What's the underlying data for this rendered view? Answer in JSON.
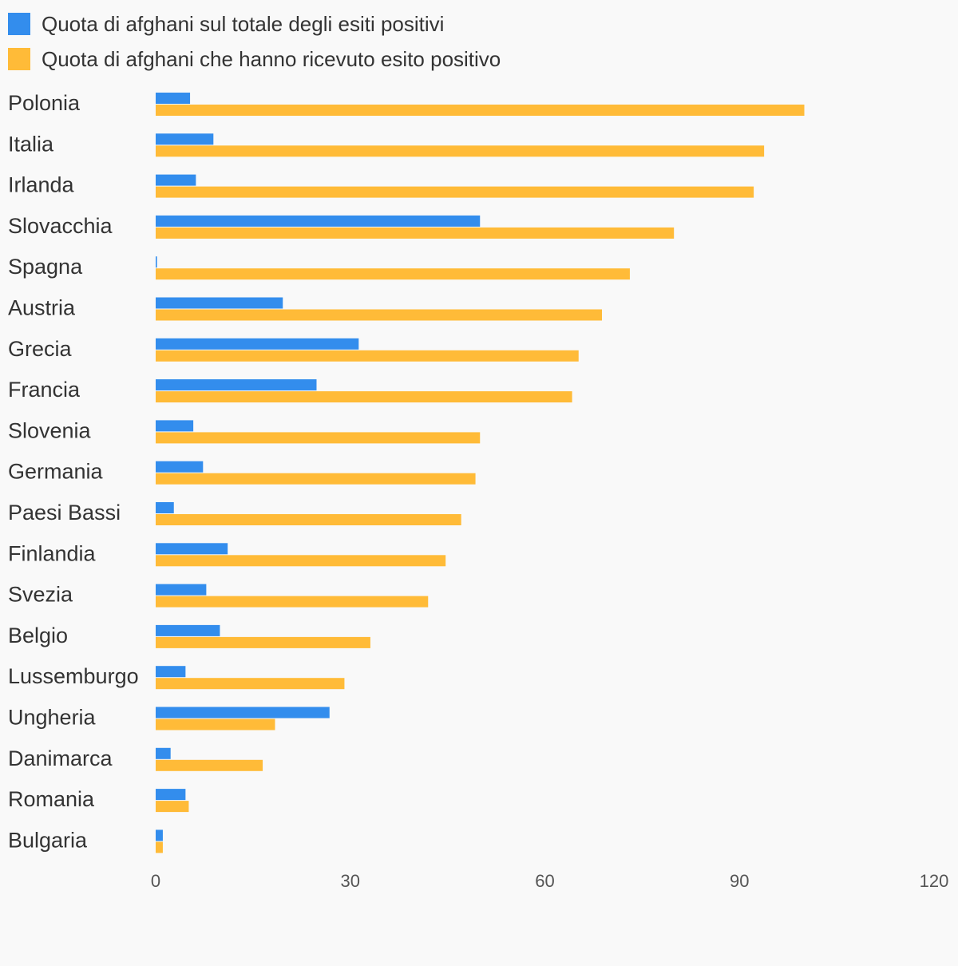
{
  "chart_data": {
    "type": "bar",
    "orientation": "horizontal",
    "categories": [
      "Polonia",
      "Italia",
      "Irlanda",
      "Slovacchia",
      "Spagna",
      "Austria",
      "Grecia",
      "Francia",
      "Slovenia",
      "Germania",
      "Paesi Bassi",
      "Finlandia",
      "Svezia",
      "Belgio",
      "Lussemburgo",
      "Ungheria",
      "Danimarca",
      "Romania",
      "Bulgaria"
    ],
    "series": [
      {
        "name": "Quota di afghani sul totale degli esiti positivi",
        "color": "#338ded",
        "values": [
          5.3,
          8.9,
          6.2,
          50.0,
          0.2,
          19.6,
          31.3,
          24.8,
          5.8,
          7.3,
          2.8,
          11.1,
          7.8,
          9.9,
          4.6,
          26.8,
          2.3,
          4.6,
          1.1
        ]
      },
      {
        "name": "Quota di afghani che hanno ricevuto esito positivo",
        "color": "#ffbb38",
        "values": [
          100.0,
          93.8,
          92.2,
          79.9,
          73.1,
          68.8,
          65.2,
          64.2,
          50.0,
          49.3,
          47.1,
          44.7,
          42.0,
          33.1,
          29.1,
          18.4,
          16.5,
          5.1,
          1.1
        ]
      }
    ],
    "xlim": [
      0,
      120
    ],
    "xticks": [
      "0",
      "30",
      "60",
      "90",
      "120"
    ],
    "grid": false,
    "legend_position": "top-left"
  }
}
